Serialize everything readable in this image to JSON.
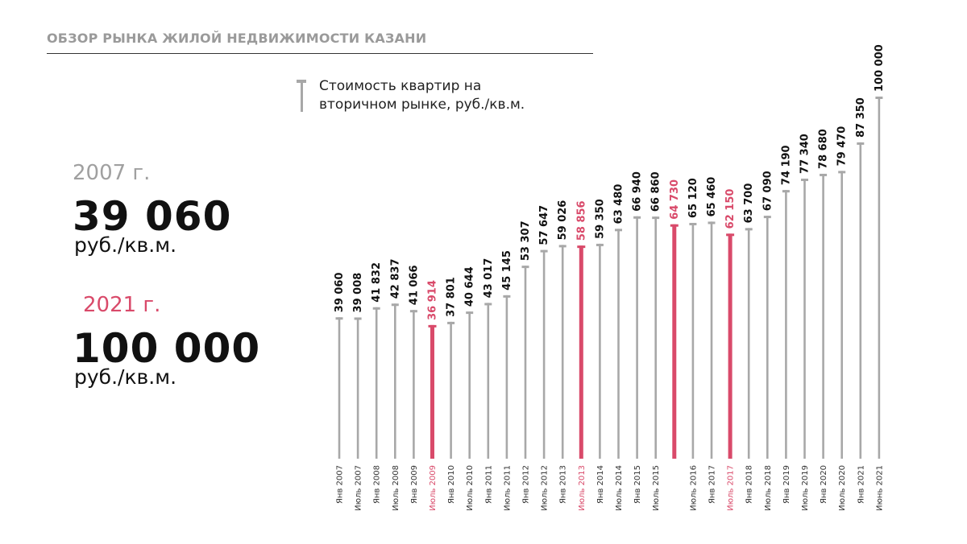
{
  "header": {
    "title": "ОБЗОР РЫНКА ЖИЛОЙ НЕДВИЖИМОСТИ КАЗАНИ"
  },
  "legend": {
    "label_line1": "Стоимость квартир на",
    "label_line2": "вторичном рынке, руб./кв.м."
  },
  "summary": {
    "first": {
      "year": "2007 г.",
      "value": "39 060",
      "unit": "руб./кв.м."
    },
    "last": {
      "year": "2021 г.",
      "value": "100 000",
      "unit": "руб./кв.м."
    }
  },
  "colors": {
    "normal": "#a8a8a8",
    "highlight": "#d94a6a",
    "text": "#111111",
    "label_gray": "#333333"
  },
  "chart_data": {
    "type": "bar",
    "title": "Стоимость квартир на вторичном рынке, руб./кв.м.",
    "xlabel": "",
    "ylabel": "",
    "grid": false,
    "legend_position": "top-left",
    "categories": [
      "Янв 2007",
      "Июль 2007",
      "Янв 2008",
      "Июль 2008",
      "Янв 2009",
      "Июль 2009",
      "Янв 2010",
      "Июль 2010",
      "Янв 2011",
      "Июль 2011",
      "Янв 2012",
      "Июль 2012",
      "Янв 2013",
      "Июль 2013",
      "Янв 2014",
      "Июль 2014",
      "Янв 2015",
      "Июль 2015",
      "",
      "Июль 2016",
      "Янв 2017",
      "Июль 2017",
      "Янв 2018",
      "Июль 2018",
      "Янв 2019",
      "Июль 2019",
      "Янв 2020",
      "Июль 2020",
      "Янв 2021",
      "Июнь 2021"
    ],
    "values": [
      39060,
      39008,
      41832,
      42837,
      41066,
      36914,
      37801,
      40644,
      43017,
      45145,
      53307,
      57647,
      59026,
      58856,
      59350,
      63480,
      66940,
      66860,
      64730,
      65120,
      65460,
      62150,
      63700,
      67090,
      74190,
      77340,
      78680,
      79470,
      87350,
      100000
    ],
    "labels": [
      "39 060",
      "39 008",
      "41 832",
      "42 837",
      "41 066",
      "36 914",
      "37 801",
      "40 644",
      "43 017",
      "45 145",
      "53 307",
      "57 647",
      "59 026",
      "58 856",
      "59 350",
      "63 480",
      "66 940",
      "66 860",
      "64 730",
      "65 120",
      "65 460",
      "62 150",
      "63 700",
      "67 090",
      "74 190",
      "77 340",
      "78 680",
      "79 470",
      "87 350",
      "100 000"
    ],
    "highlighted": [
      false,
      false,
      false,
      false,
      false,
      true,
      false,
      false,
      false,
      false,
      false,
      false,
      false,
      true,
      false,
      false,
      false,
      false,
      true,
      false,
      false,
      true,
      false,
      false,
      false,
      false,
      false,
      false,
      false,
      false
    ]
  }
}
